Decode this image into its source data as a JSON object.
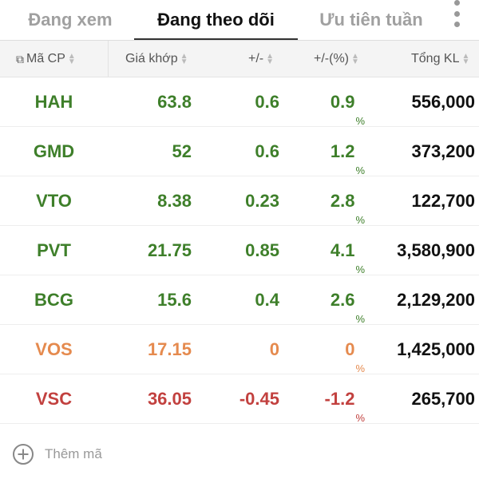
{
  "tabs": [
    {
      "label": "Đang xem",
      "active": false
    },
    {
      "label": "Đang theo dõi",
      "active": true
    },
    {
      "label": "Ưu tiên tuần",
      "active": false
    }
  ],
  "columns": [
    "Mã CP",
    "Giá khớp",
    "+/-",
    "+/-(%)",
    "Tổng KL"
  ],
  "colors": {
    "up": "#3e7f2a",
    "ref": "#e58a4e",
    "down": "#c2413f"
  },
  "rows": [
    {
      "symbol": "HAH",
      "price": "63.8",
      "change": "0.6",
      "pct": "0.9",
      "volume": "556,000",
      "status": "up"
    },
    {
      "symbol": "GMD",
      "price": "52",
      "change": "0.6",
      "pct": "1.2",
      "volume": "373,200",
      "status": "up"
    },
    {
      "symbol": "VTO",
      "price": "8.38",
      "change": "0.23",
      "pct": "2.8",
      "volume": "122,700",
      "status": "up"
    },
    {
      "symbol": "PVT",
      "price": "21.75",
      "change": "0.85",
      "pct": "4.1",
      "volume": "3,580,900",
      "status": "up"
    },
    {
      "symbol": "BCG",
      "price": "15.6",
      "change": "0.4",
      "pct": "2.6",
      "volume": "2,129,200",
      "status": "up"
    },
    {
      "symbol": "VOS",
      "price": "17.15",
      "change": "0",
      "pct": "0",
      "volume": "1,425,000",
      "status": "ref"
    },
    {
      "symbol": "VSC",
      "price": "36.05",
      "change": "-0.45",
      "pct": "-1.2",
      "volume": "265,700",
      "status": "down"
    }
  ],
  "pct_sign": "%",
  "add_label": "Thêm mã"
}
